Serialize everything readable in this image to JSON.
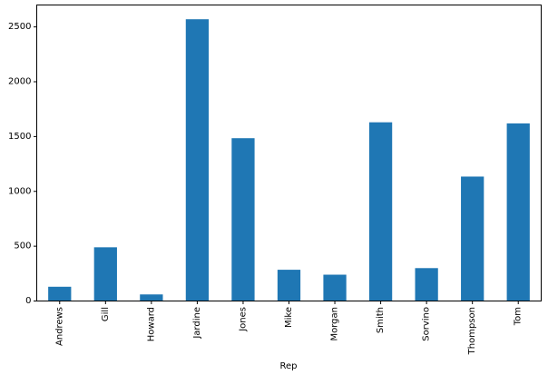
{
  "chart_data": {
    "type": "bar",
    "title": "",
    "xlabel": "Rep",
    "ylabel": "",
    "categories": [
      "Andrews",
      "Gill",
      "Howard",
      "Jardine",
      "Jones",
      "Mike",
      "Morgan",
      "Smith",
      "Sorvino",
      "Thompson",
      "Tom"
    ],
    "values": [
      130,
      490,
      60,
      2570,
      1485,
      285,
      240,
      1630,
      300,
      1135,
      1620
    ],
    "yticks": [
      0,
      500,
      1000,
      1500,
      2000,
      2500
    ],
    "ylim": [
      0,
      2700
    ],
    "grid": false,
    "legend": "none",
    "x_tick_rotation": 90,
    "bar_width_fraction": 0.5
  },
  "colors": {
    "bar": "#1f77b4",
    "spine": "#000000",
    "tick": "#000000",
    "text": "#000000",
    "background": "#ffffff"
  }
}
